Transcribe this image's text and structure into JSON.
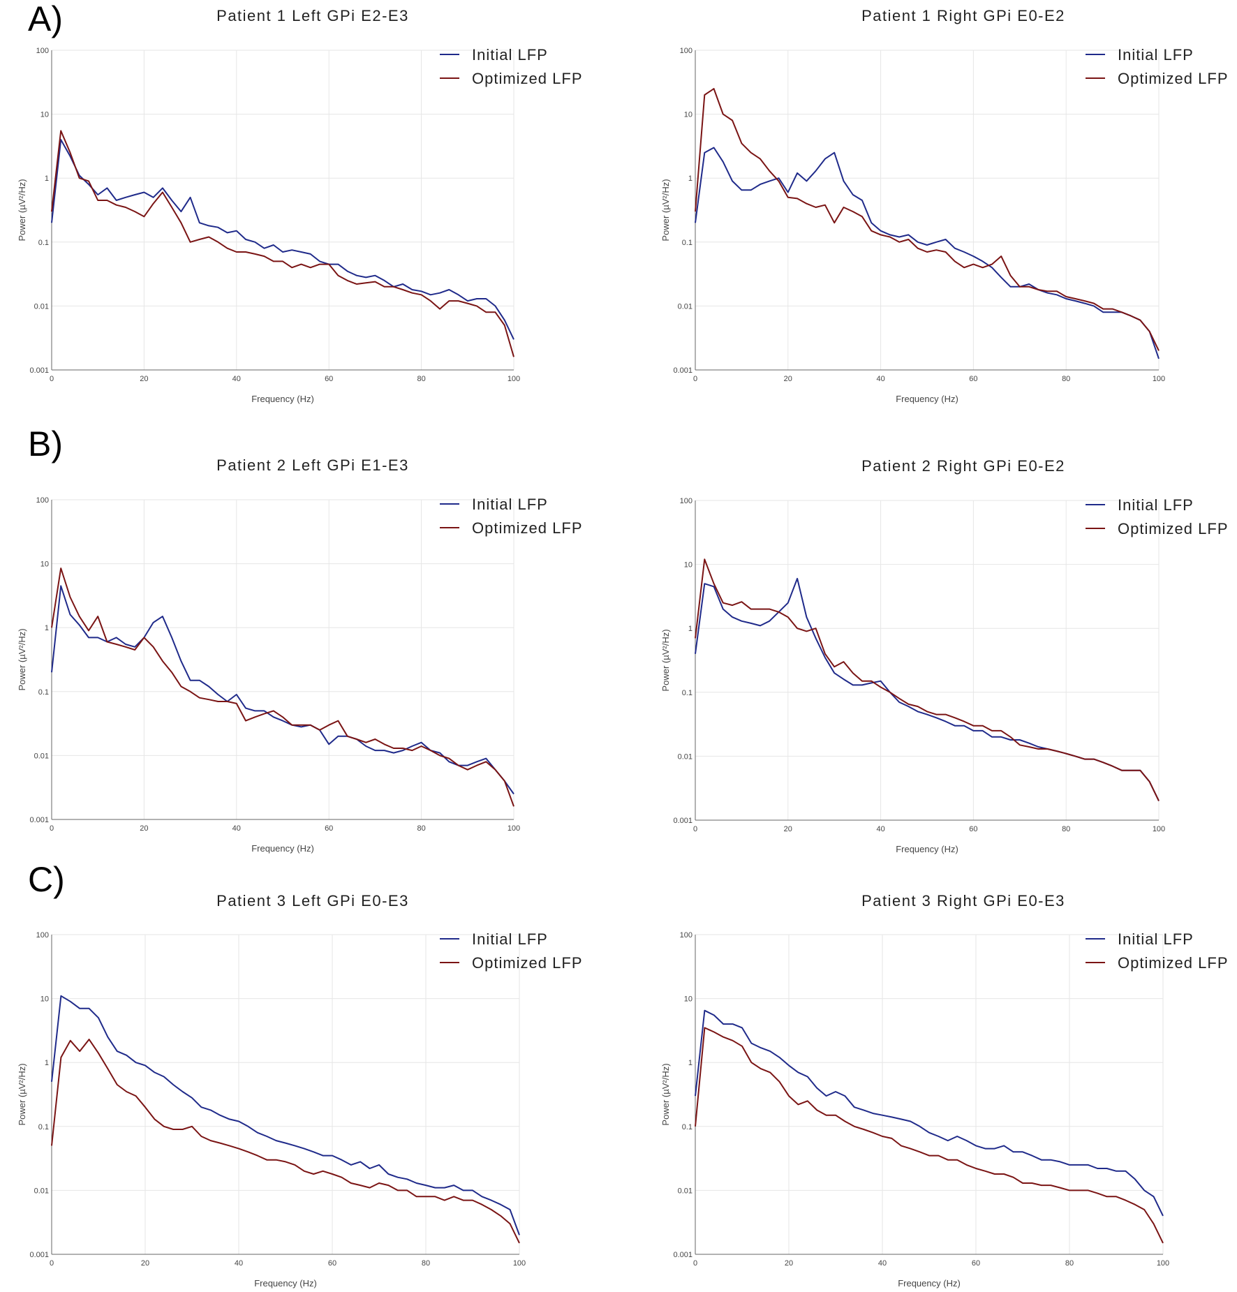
{
  "figure": {
    "panel_labels": [
      "A)",
      "B)",
      "C)"
    ],
    "colors": {
      "initial": "#1f2a8a",
      "optimized": "#7a1414"
    }
  },
  "chart_data": [
    {
      "type": "line",
      "title": "Patient 1 Left GPi E2-E3",
      "xlabel": "Frequency (Hz)",
      "ylabel": "Power (µV²/Hz)",
      "xlim": [
        0,
        100
      ],
      "ylim": [
        0.001,
        100
      ],
      "yscale": "log",
      "xticks": [
        "0",
        "20",
        "40",
        "60",
        "80",
        "100"
      ],
      "yticks": [
        "0.001",
        "0.01",
        "0.1",
        "1",
        "10",
        "100"
      ],
      "legend": [
        "Initial LFP",
        "Optimized LFP"
      ],
      "legend_position": "top-right",
      "x": [
        0,
        2,
        4,
        6,
        8,
        10,
        12,
        14,
        16,
        18,
        20,
        22,
        24,
        26,
        28,
        30,
        32,
        34,
        36,
        38,
        40,
        42,
        44,
        46,
        48,
        50,
        52,
        54,
        56,
        58,
        60,
        62,
        64,
        66,
        68,
        70,
        72,
        74,
        76,
        78,
        80,
        82,
        84,
        86,
        88,
        90,
        92,
        94,
        96,
        98,
        100
      ],
      "series": [
        {
          "name": "Initial LFP",
          "values": [
            0.2,
            4.0,
            2.2,
            1.1,
            0.8,
            0.55,
            0.7,
            0.45,
            0.5,
            0.55,
            0.6,
            0.5,
            0.7,
            0.45,
            0.3,
            0.5,
            0.2,
            0.18,
            0.17,
            0.14,
            0.15,
            0.11,
            0.1,
            0.08,
            0.09,
            0.07,
            0.075,
            0.07,
            0.065,
            0.05,
            0.045,
            0.045,
            0.035,
            0.03,
            0.028,
            0.03,
            0.025,
            0.02,
            0.022,
            0.018,
            0.017,
            0.015,
            0.016,
            0.018,
            0.015,
            0.012,
            0.013,
            0.013,
            0.01,
            0.006,
            0.003
          ]
        },
        {
          "name": "Optimized LFP",
          "values": [
            0.3,
            5.5,
            2.5,
            1.0,
            0.9,
            0.45,
            0.45,
            0.38,
            0.35,
            0.3,
            0.25,
            0.4,
            0.6,
            0.35,
            0.2,
            0.1,
            0.11,
            0.12,
            0.1,
            0.08,
            0.07,
            0.07,
            0.065,
            0.06,
            0.05,
            0.05,
            0.04,
            0.045,
            0.04,
            0.045,
            0.045,
            0.03,
            0.025,
            0.022,
            0.023,
            0.024,
            0.02,
            0.02,
            0.018,
            0.016,
            0.015,
            0.012,
            0.009,
            0.012,
            0.012,
            0.011,
            0.01,
            0.008,
            0.008,
            0.005,
            0.0016
          ]
        }
      ]
    },
    {
      "type": "line",
      "title": "Patient 1 Right GPi E0-E2",
      "xlabel": "Frequency (Hz)",
      "ylabel": "Power (µV²/Hz)",
      "xlim": [
        0,
        100
      ],
      "ylim": [
        0.001,
        100
      ],
      "yscale": "log",
      "xticks": [
        "0",
        "20",
        "40",
        "60",
        "80",
        "100"
      ],
      "yticks": [
        "0.001",
        "0.01",
        "0.1",
        "1",
        "10",
        "100"
      ],
      "legend": [
        "Initial LFP",
        "Optimized LFP"
      ],
      "legend_position": "top-right",
      "x": [
        0,
        2,
        4,
        6,
        8,
        10,
        12,
        14,
        16,
        18,
        20,
        22,
        24,
        26,
        28,
        30,
        32,
        34,
        36,
        38,
        40,
        42,
        44,
        46,
        48,
        50,
        52,
        54,
        56,
        58,
        60,
        62,
        64,
        66,
        68,
        70,
        72,
        74,
        76,
        78,
        80,
        82,
        84,
        86,
        88,
        90,
        92,
        94,
        96,
        98,
        100
      ],
      "series": [
        {
          "name": "Initial LFP",
          "values": [
            0.2,
            2.5,
            3.0,
            1.8,
            0.9,
            0.65,
            0.65,
            0.8,
            0.9,
            1.0,
            0.6,
            1.2,
            0.9,
            1.3,
            2.0,
            2.5,
            0.9,
            0.55,
            0.45,
            0.2,
            0.15,
            0.13,
            0.12,
            0.13,
            0.1,
            0.09,
            0.1,
            0.11,
            0.08,
            0.07,
            0.06,
            0.05,
            0.04,
            0.028,
            0.02,
            0.02,
            0.022,
            0.018,
            0.016,
            0.015,
            0.013,
            0.012,
            0.011,
            0.01,
            0.008,
            0.008,
            0.008,
            0.007,
            0.006,
            0.004,
            0.0015
          ]
        },
        {
          "name": "Optimized LFP",
          "values": [
            0.3,
            20.0,
            25.0,
            10.0,
            8.0,
            3.5,
            2.5,
            2.0,
            1.3,
            0.9,
            0.5,
            0.48,
            0.4,
            0.35,
            0.38,
            0.2,
            0.35,
            0.3,
            0.25,
            0.15,
            0.13,
            0.12,
            0.1,
            0.11,
            0.08,
            0.07,
            0.075,
            0.07,
            0.05,
            0.04,
            0.045,
            0.04,
            0.045,
            0.06,
            0.03,
            0.02,
            0.02,
            0.018,
            0.017,
            0.017,
            0.014,
            0.013,
            0.012,
            0.011,
            0.009,
            0.009,
            0.008,
            0.007,
            0.006,
            0.004,
            0.002
          ]
        }
      ]
    },
    {
      "type": "line",
      "title": "Patient 2 Left GPi E1-E3",
      "xlabel": "Frequency (Hz)",
      "ylabel": "Power (µV²/Hz)",
      "xlim": [
        0,
        100
      ],
      "ylim": [
        0.001,
        100
      ],
      "yscale": "log",
      "xticks": [
        "0",
        "20",
        "40",
        "60",
        "80",
        "100"
      ],
      "yticks": [
        "0.001",
        "0.01",
        "0.1",
        "1",
        "10",
        "100"
      ],
      "legend": [
        "Initial LFP",
        "Optimized LFP"
      ],
      "legend_position": "top-right",
      "x": [
        0,
        2,
        4,
        6,
        8,
        10,
        12,
        14,
        16,
        18,
        20,
        22,
        24,
        26,
        28,
        30,
        32,
        34,
        36,
        38,
        40,
        42,
        44,
        46,
        48,
        50,
        52,
        54,
        56,
        58,
        60,
        62,
        64,
        66,
        68,
        70,
        72,
        74,
        76,
        78,
        80,
        82,
        84,
        86,
        88,
        90,
        92,
        94,
        96,
        98,
        100
      ],
      "series": [
        {
          "name": "Initial LFP",
          "values": [
            0.2,
            4.5,
            1.6,
            1.1,
            0.7,
            0.7,
            0.6,
            0.7,
            0.55,
            0.5,
            0.7,
            1.2,
            1.5,
            0.7,
            0.3,
            0.15,
            0.15,
            0.12,
            0.09,
            0.07,
            0.09,
            0.055,
            0.05,
            0.05,
            0.04,
            0.035,
            0.03,
            0.028,
            0.03,
            0.025,
            0.015,
            0.02,
            0.02,
            0.018,
            0.014,
            0.012,
            0.012,
            0.011,
            0.012,
            0.014,
            0.016,
            0.012,
            0.011,
            0.008,
            0.007,
            0.007,
            0.008,
            0.009,
            0.006,
            0.004,
            0.0025
          ]
        },
        {
          "name": "Optimized LFP",
          "values": [
            1.0,
            8.5,
            3.0,
            1.5,
            0.9,
            1.5,
            0.6,
            0.55,
            0.5,
            0.45,
            0.7,
            0.5,
            0.3,
            0.2,
            0.12,
            0.1,
            0.08,
            0.075,
            0.07,
            0.07,
            0.065,
            0.035,
            0.04,
            0.045,
            0.05,
            0.04,
            0.03,
            0.03,
            0.03,
            0.025,
            0.03,
            0.035,
            0.02,
            0.018,
            0.016,
            0.018,
            0.015,
            0.013,
            0.013,
            0.012,
            0.014,
            0.012,
            0.01,
            0.009,
            0.007,
            0.006,
            0.007,
            0.008,
            0.006,
            0.004,
            0.0016
          ]
        }
      ]
    },
    {
      "type": "line",
      "title": "Patient 2 Right GPi E0-E2",
      "xlabel": "Frequency (Hz)",
      "ylabel": "Power (µV²/Hz)",
      "xlim": [
        0,
        100
      ],
      "ylim": [
        0.001,
        100
      ],
      "yscale": "log",
      "xticks": [
        "0",
        "20",
        "40",
        "60",
        "80",
        "100"
      ],
      "yticks": [
        "0.001",
        "0.01",
        "0.1",
        "1",
        "10",
        "100"
      ],
      "legend": [
        "Initial LFP",
        "Optimized LFP"
      ],
      "legend_position": "top-right",
      "x": [
        0,
        2,
        4,
        6,
        8,
        10,
        12,
        14,
        16,
        18,
        20,
        22,
        24,
        26,
        28,
        30,
        32,
        34,
        36,
        38,
        40,
        42,
        44,
        46,
        48,
        50,
        52,
        54,
        56,
        58,
        60,
        62,
        64,
        66,
        68,
        70,
        72,
        74,
        76,
        78,
        80,
        82,
        84,
        86,
        88,
        90,
        92,
        94,
        96,
        98,
        100
      ],
      "series": [
        {
          "name": "Initial LFP",
          "values": [
            0.4,
            5.0,
            4.5,
            2.0,
            1.5,
            1.3,
            1.2,
            1.1,
            1.3,
            1.8,
            2.5,
            6.0,
            1.5,
            0.7,
            0.35,
            0.2,
            0.16,
            0.13,
            0.13,
            0.14,
            0.15,
            0.1,
            0.07,
            0.06,
            0.05,
            0.045,
            0.04,
            0.035,
            0.03,
            0.03,
            0.025,
            0.025,
            0.02,
            0.02,
            0.018,
            0.018,
            0.016,
            0.014,
            0.013,
            0.012,
            0.011,
            0.01,
            0.009,
            0.009,
            0.008,
            0.007,
            0.006,
            0.006,
            0.006,
            0.004,
            0.002
          ]
        },
        {
          "name": "Optimized LFP",
          "values": [
            0.7,
            12.0,
            5.0,
            2.5,
            2.3,
            2.6,
            2.0,
            2.0,
            2.0,
            1.8,
            1.5,
            1.0,
            0.9,
            1.0,
            0.4,
            0.25,
            0.3,
            0.2,
            0.15,
            0.15,
            0.12,
            0.1,
            0.08,
            0.065,
            0.06,
            0.05,
            0.045,
            0.045,
            0.04,
            0.035,
            0.03,
            0.03,
            0.025,
            0.025,
            0.02,
            0.015,
            0.014,
            0.013,
            0.013,
            0.012,
            0.011,
            0.01,
            0.009,
            0.009,
            0.008,
            0.007,
            0.006,
            0.006,
            0.006,
            0.004,
            0.002
          ]
        }
      ]
    },
    {
      "type": "line",
      "title": "Patient 3 Left GPi E0-E3",
      "xlabel": "Frequency (Hz)",
      "ylabel": "Power (µV²/Hz)",
      "xlim": [
        0,
        100
      ],
      "ylim": [
        0.001,
        100
      ],
      "yscale": "log",
      "xticks": [
        "0",
        "20",
        "40",
        "60",
        "80",
        "100"
      ],
      "yticks": [
        "0.001",
        "0.01",
        "0.1",
        "1",
        "10",
        "100"
      ],
      "legend": [
        "Initial LFP",
        "Optimized LFP"
      ],
      "legend_position": "top-right",
      "x": [
        0,
        2,
        4,
        6,
        8,
        10,
        12,
        14,
        16,
        18,
        20,
        22,
        24,
        26,
        28,
        30,
        32,
        34,
        36,
        38,
        40,
        42,
        44,
        46,
        48,
        50,
        52,
        54,
        56,
        58,
        60,
        62,
        64,
        66,
        68,
        70,
        72,
        74,
        76,
        78,
        80,
        82,
        84,
        86,
        88,
        90,
        92,
        94,
        96,
        98,
        100
      ],
      "series": [
        {
          "name": "Initial LFP",
          "values": [
            0.5,
            11.0,
            9.0,
            7.0,
            7.0,
            5.0,
            2.5,
            1.5,
            1.3,
            1.0,
            0.9,
            0.7,
            0.6,
            0.45,
            0.35,
            0.28,
            0.2,
            0.18,
            0.15,
            0.13,
            0.12,
            0.1,
            0.08,
            0.07,
            0.06,
            0.055,
            0.05,
            0.045,
            0.04,
            0.035,
            0.035,
            0.03,
            0.025,
            0.028,
            0.022,
            0.025,
            0.018,
            0.016,
            0.015,
            0.013,
            0.012,
            0.011,
            0.011,
            0.012,
            0.01,
            0.01,
            0.008,
            0.007,
            0.006,
            0.005,
            0.002
          ]
        },
        {
          "name": "Optimized LFP",
          "values": [
            0.05,
            1.2,
            2.2,
            1.5,
            2.3,
            1.4,
            0.8,
            0.45,
            0.35,
            0.3,
            0.2,
            0.13,
            0.1,
            0.09,
            0.09,
            0.1,
            0.07,
            0.06,
            0.055,
            0.05,
            0.045,
            0.04,
            0.035,
            0.03,
            0.03,
            0.028,
            0.025,
            0.02,
            0.018,
            0.02,
            0.018,
            0.016,
            0.013,
            0.012,
            0.011,
            0.013,
            0.012,
            0.01,
            0.01,
            0.008,
            0.008,
            0.008,
            0.007,
            0.008,
            0.007,
            0.007,
            0.006,
            0.005,
            0.004,
            0.003,
            0.0015
          ]
        }
      ]
    },
    {
      "type": "line",
      "title": "Patient 3 Right GPi E0-E3",
      "xlabel": "Frequency (Hz)",
      "ylabel": "Power (µV²/Hz)",
      "xlim": [
        0,
        100
      ],
      "ylim": [
        0.001,
        100
      ],
      "yscale": "log",
      "xticks": [
        "0",
        "20",
        "40",
        "60",
        "80",
        "100"
      ],
      "yticks": [
        "0.001",
        "0.01",
        "0.1",
        "1",
        "10",
        "100"
      ],
      "legend": [
        "Initial LFP",
        "Optimized LFP"
      ],
      "legend_position": "top-right",
      "x": [
        0,
        2,
        4,
        6,
        8,
        10,
        12,
        14,
        16,
        18,
        20,
        22,
        24,
        26,
        28,
        30,
        32,
        34,
        36,
        38,
        40,
        42,
        44,
        46,
        48,
        50,
        52,
        54,
        56,
        58,
        60,
        62,
        64,
        66,
        68,
        70,
        72,
        74,
        76,
        78,
        80,
        82,
        84,
        86,
        88,
        90,
        92,
        94,
        96,
        98,
        100
      ],
      "series": [
        {
          "name": "Initial LFP",
          "values": [
            0.3,
            6.5,
            5.5,
            4.0,
            4.0,
            3.5,
            2.0,
            1.7,
            1.5,
            1.2,
            0.9,
            0.7,
            0.6,
            0.4,
            0.3,
            0.35,
            0.3,
            0.2,
            0.18,
            0.16,
            0.15,
            0.14,
            0.13,
            0.12,
            0.1,
            0.08,
            0.07,
            0.06,
            0.07,
            0.06,
            0.05,
            0.045,
            0.045,
            0.05,
            0.04,
            0.04,
            0.035,
            0.03,
            0.03,
            0.028,
            0.025,
            0.025,
            0.025,
            0.022,
            0.022,
            0.02,
            0.02,
            0.015,
            0.01,
            0.008,
            0.004
          ]
        },
        {
          "name": "Optimized LFP",
          "values": [
            0.1,
            3.5,
            3.0,
            2.5,
            2.2,
            1.8,
            1.0,
            0.8,
            0.7,
            0.5,
            0.3,
            0.22,
            0.25,
            0.18,
            0.15,
            0.15,
            0.12,
            0.1,
            0.09,
            0.08,
            0.07,
            0.065,
            0.05,
            0.045,
            0.04,
            0.035,
            0.035,
            0.03,
            0.03,
            0.025,
            0.022,
            0.02,
            0.018,
            0.018,
            0.016,
            0.013,
            0.013,
            0.012,
            0.012,
            0.011,
            0.01,
            0.01,
            0.01,
            0.009,
            0.008,
            0.008,
            0.007,
            0.006,
            0.005,
            0.003,
            0.0015
          ]
        }
      ]
    }
  ]
}
